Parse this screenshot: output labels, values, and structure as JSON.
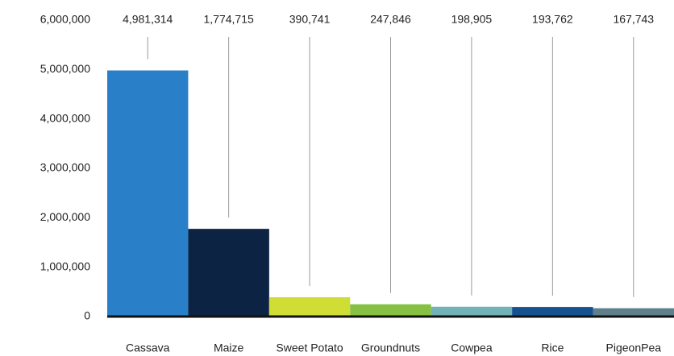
{
  "chart_data": {
    "type": "bar",
    "categories": [
      "Cassava",
      "Maize",
      "Sweet Potato",
      "Groundnuts",
      "Cowpea",
      "Rice",
      "PigeonPea"
    ],
    "values": [
      4981314,
      1774715,
      390741,
      247846,
      198905,
      193762,
      167743
    ],
    "value_labels": [
      "4,981,314",
      "1,774,715",
      "390,741",
      "247,846",
      "198,905",
      "193,762",
      "167,743"
    ],
    "colors": [
      "#2a80c8",
      "#0c2344",
      "#cfdd35",
      "#86c143",
      "#72b1b6",
      "#15508f",
      "#5e7f8b"
    ],
    "ylim": [
      0,
      6000000
    ],
    "yticks": [
      0,
      {
        "value": 1000000,
        "label": "1,000,000"
      },
      {
        "value": 2000000,
        "label": "2,000,000"
      },
      {
        "value": 3000000,
        "label": "3,000,000"
      },
      {
        "value": 4000000,
        "label": "4,000,000"
      },
      {
        "value": 5000000,
        "label": "5,000,000"
      },
      {
        "value": 6000000,
        "label": "6,000,000"
      }
    ],
    "grid": false
  }
}
